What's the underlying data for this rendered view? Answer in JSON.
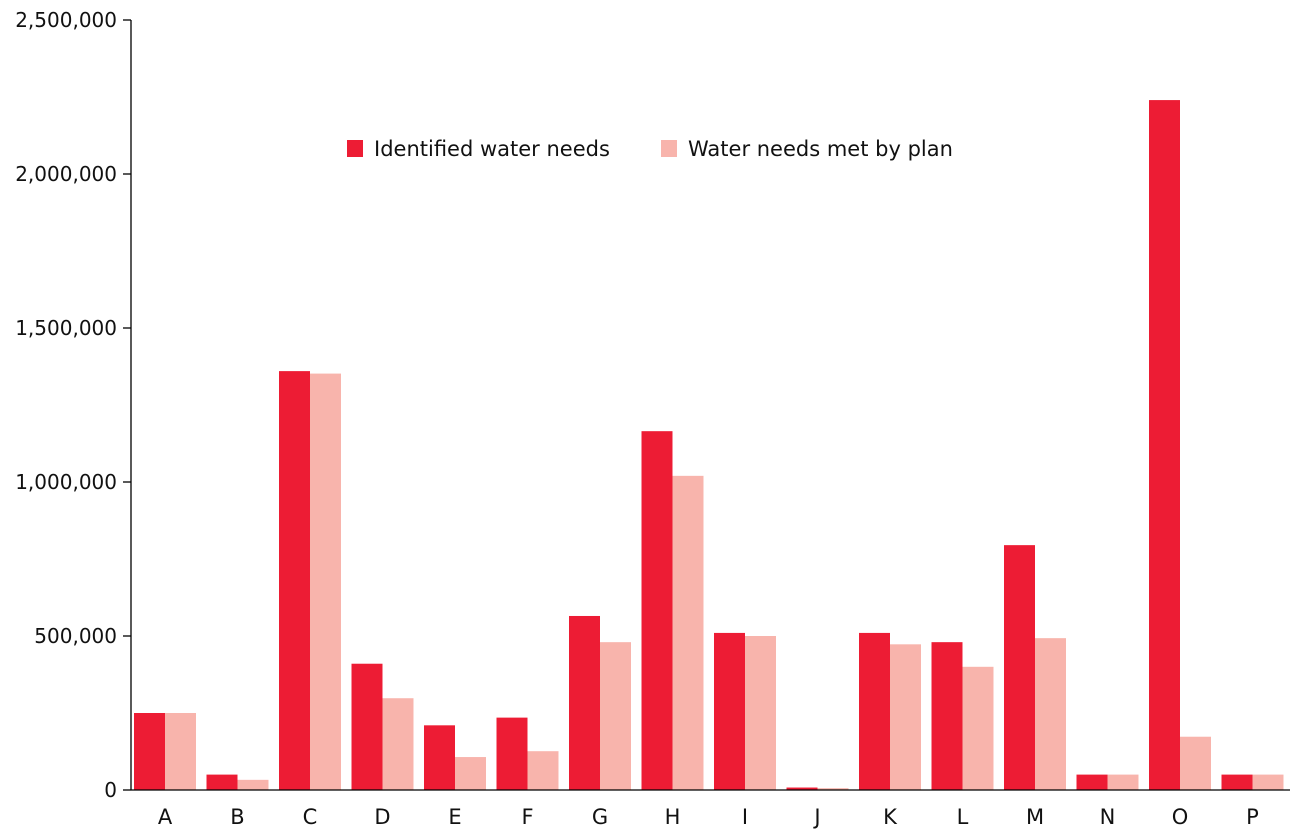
{
  "chart_data": {
    "type": "bar",
    "categories": [
      "A",
      "B",
      "C",
      "D",
      "E",
      "F",
      "G",
      "H",
      "I",
      "J",
      "K",
      "L",
      "M",
      "N",
      "O",
      "P"
    ],
    "series": [
      {
        "name": "Identified water needs",
        "color": "#ED1C34",
        "values": [
          250000,
          50000,
          1360000,
          410000,
          210000,
          235000,
          565000,
          1165000,
          510000,
          8000,
          510000,
          480000,
          795000,
          50000,
          2240000,
          50000
        ]
      },
      {
        "name": "Water needs met by plan",
        "color": "#F8B4AC",
        "values": [
          250000,
          33000,
          1352000,
          298000,
          107000,
          126000,
          480000,
          1020000,
          500000,
          6000,
          473000,
          400000,
          493000,
          50000,
          173000,
          50000
        ]
      }
    ],
    "yticks": [
      0,
      500000,
      1000000,
      1500000,
      2000000,
      2500000
    ],
    "ytick_labels": [
      "0",
      "500,000",
      "1,000,000",
      "1,500,000",
      "2,000,000",
      "2,500,000"
    ],
    "ylim": [
      0,
      2500000
    ],
    "title": "",
    "xlabel": "",
    "ylabel": "",
    "grid": false,
    "legend_position": "top-center"
  }
}
